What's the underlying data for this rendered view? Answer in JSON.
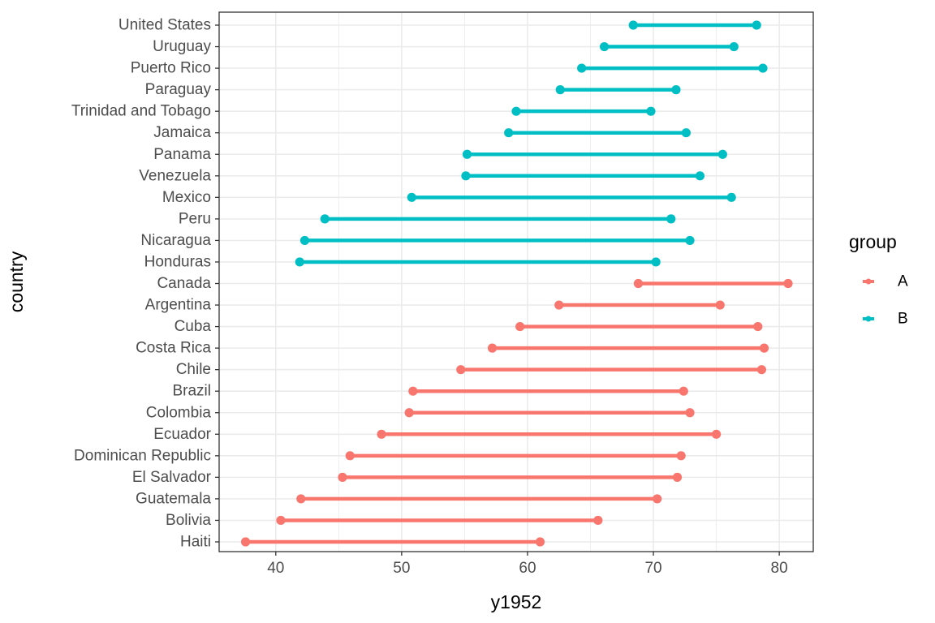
{
  "chart_data": {
    "type": "dumbbell",
    "xlabel": "y1952",
    "ylabel": "country",
    "xlim": [
      35.5,
      82.7
    ],
    "x_ticks": [
      40,
      50,
      60,
      70,
      80
    ],
    "grid": true,
    "legend": {
      "title": "group",
      "placement": "right",
      "entries": [
        {
          "name": "A",
          "color": "#F8766D"
        },
        {
          "name": "B",
          "color": "#00BFC4"
        }
      ]
    },
    "rows": [
      {
        "country": "Haiti",
        "group": "A",
        "start": 37.6,
        "end": 61.0
      },
      {
        "country": "Bolivia",
        "group": "A",
        "start": 40.4,
        "end": 65.6
      },
      {
        "country": "Guatemala",
        "group": "A",
        "start": 42.0,
        "end": 70.3
      },
      {
        "country": "El Salvador",
        "group": "A",
        "start": 45.3,
        "end": 71.9
      },
      {
        "country": "Dominican Republic",
        "group": "A",
        "start": 45.9,
        "end": 72.2
      },
      {
        "country": "Ecuador",
        "group": "A",
        "start": 48.4,
        "end": 75.0
      },
      {
        "country": "Colombia",
        "group": "A",
        "start": 50.6,
        "end": 72.9
      },
      {
        "country": "Brazil",
        "group": "A",
        "start": 50.9,
        "end": 72.4
      },
      {
        "country": "Chile",
        "group": "A",
        "start": 54.7,
        "end": 78.6
      },
      {
        "country": "Costa Rica",
        "group": "A",
        "start": 57.2,
        "end": 78.8
      },
      {
        "country": "Cuba",
        "group": "A",
        "start": 59.4,
        "end": 78.3
      },
      {
        "country": "Argentina",
        "group": "A",
        "start": 62.5,
        "end": 75.3
      },
      {
        "country": "Canada",
        "group": "A",
        "start": 68.8,
        "end": 80.7
      },
      {
        "country": "Honduras",
        "group": "B",
        "start": 41.9,
        "end": 70.2
      },
      {
        "country": "Nicaragua",
        "group": "B",
        "start": 42.3,
        "end": 72.9
      },
      {
        "country": "Peru",
        "group": "B",
        "start": 43.9,
        "end": 71.4
      },
      {
        "country": "Mexico",
        "group": "B",
        "start": 50.8,
        "end": 76.2
      },
      {
        "country": "Venezuela",
        "group": "B",
        "start": 55.1,
        "end": 73.7
      },
      {
        "country": "Panama",
        "group": "B",
        "start": 55.2,
        "end": 75.5
      },
      {
        "country": "Jamaica",
        "group": "B",
        "start": 58.5,
        "end": 72.6
      },
      {
        "country": "Trinidad and Tobago",
        "group": "B",
        "start": 59.1,
        "end": 69.8
      },
      {
        "country": "Paraguay",
        "group": "B",
        "start": 62.6,
        "end": 71.8
      },
      {
        "country": "Puerto Rico",
        "group": "B",
        "start": 64.3,
        "end": 78.7
      },
      {
        "country": "Uruguay",
        "group": "B",
        "start": 66.1,
        "end": 76.4
      },
      {
        "country": "United States",
        "group": "B",
        "start": 68.4,
        "end": 78.2
      }
    ]
  }
}
